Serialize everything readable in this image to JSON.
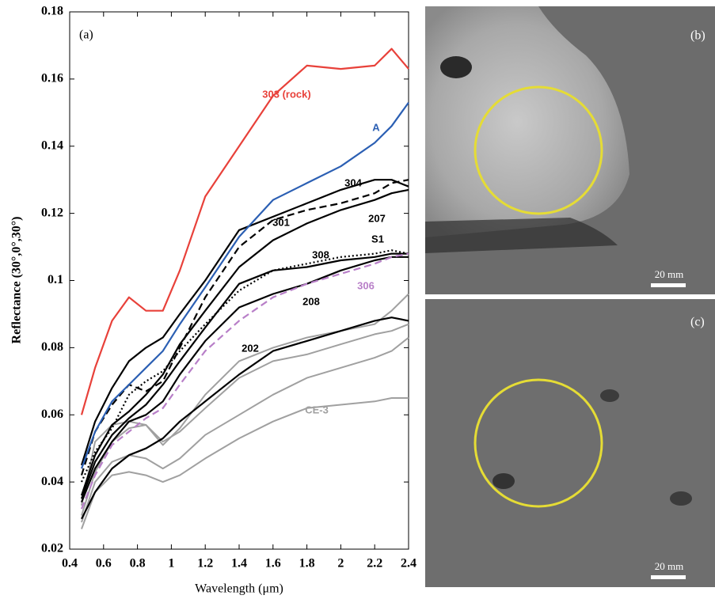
{
  "chart_data": {
    "type": "line",
    "annotation": "(a)",
    "xlabel": "Wavelength (μm)",
    "ylabel": "Reflectance (30°,0°,30°)",
    "xlim": [
      0.4,
      2.4
    ],
    "ylim": [
      0.02,
      0.18
    ],
    "xticks": [
      0.4,
      0.6,
      0.8,
      1,
      1.2,
      1.4,
      1.6,
      1.8,
      2,
      2.2,
      2.4
    ],
    "yticks": [
      0.02,
      0.04,
      0.06,
      0.08,
      0.1,
      0.12,
      0.14,
      0.16,
      0.18
    ],
    "x": [
      0.47,
      0.55,
      0.65,
      0.75,
      0.85,
      0.95,
      1.05,
      1.2,
      1.4,
      1.6,
      1.8,
      2.0,
      2.2,
      2.3,
      2.4
    ],
    "series": [
      {
        "color": "#a0a0a0",
        "values": [
          0.033,
          0.052,
          0.057,
          0.058,
          0.057,
          0.051,
          0.056,
          0.066,
          0.076,
          0.08,
          0.083,
          0.085,
          0.087,
          0.091,
          0.096
        ]
      },
      {
        "color": "#a0a0a0",
        "values": [
          0.03,
          0.043,
          0.052,
          0.056,
          0.057,
          0.052,
          0.055,
          0.062,
          0.071,
          0.076,
          0.078,
          0.081,
          0.084,
          0.085,
          0.087
        ]
      },
      {
        "color": "#a0a0a0",
        "values": [
          0.028,
          0.04,
          0.046,
          0.048,
          0.047,
          0.044,
          0.047,
          0.054,
          0.06,
          0.066,
          0.071,
          0.074,
          0.077,
          0.079,
          0.083
        ]
      },
      {
        "name": "CE-3",
        "color": "#a0a0a0",
        "values": [
          0.026,
          0.037,
          0.042,
          0.043,
          0.042,
          0.04,
          0.042,
          0.047,
          0.053,
          0.058,
          0.062,
          0.063,
          0.064,
          0.065,
          0.065
        ]
      },
      {
        "name": "202",
        "color": "#000000",
        "values": [
          0.029,
          0.037,
          0.044,
          0.048,
          0.05,
          0.053,
          0.058,
          0.064,
          0.072,
          0.079,
          0.082,
          0.085,
          0.088,
          0.089,
          0.088
        ]
      },
      {
        "name": "208",
        "color": "#000000",
        "values": [
          0.034,
          0.044,
          0.052,
          0.058,
          0.06,
          0.064,
          0.072,
          0.082,
          0.092,
          0.096,
          0.099,
          0.103,
          0.106,
          0.107,
          0.107
        ]
      },
      {
        "name": "S1",
        "color": "#000000",
        "values": [
          0.035,
          0.046,
          0.054,
          0.059,
          0.063,
          0.069,
          0.076,
          0.086,
          0.099,
          0.103,
          0.104,
          0.106,
          0.107,
          0.108,
          0.108
        ]
      },
      {
        "name": "308",
        "color": "#000000",
        "dash": "dotted",
        "values": [
          0.04,
          0.049,
          0.056,
          0.066,
          0.07,
          0.073,
          0.079,
          0.087,
          0.097,
          0.103,
          0.105,
          0.107,
          0.108,
          0.109,
          0.108
        ]
      },
      {
        "name": "207",
        "color": "#000000",
        "values": [
          0.036,
          0.048,
          0.057,
          0.061,
          0.066,
          0.072,
          0.081,
          0.091,
          0.104,
          0.112,
          0.117,
          0.121,
          0.124,
          0.126,
          0.127
        ]
      },
      {
        "name": "301",
        "color": "#000000",
        "dash": "dashed",
        "values": [
          0.042,
          0.055,
          0.063,
          0.069,
          0.067,
          0.07,
          0.08,
          0.095,
          0.11,
          0.118,
          0.121,
          0.123,
          0.126,
          0.129,
          0.13
        ]
      },
      {
        "name": "304",
        "color": "#000000",
        "values": [
          0.045,
          0.058,
          0.068,
          0.076,
          0.08,
          0.083,
          0.09,
          0.1,
          0.115,
          0.119,
          0.123,
          0.127,
          0.13,
          0.13,
          0.128
        ]
      },
      {
        "name": "306",
        "color": "#b87fc8",
        "dash": "dashed",
        "values": [
          0.032,
          0.042,
          0.051,
          0.055,
          0.059,
          0.062,
          0.069,
          0.079,
          0.088,
          0.095,
          0.099,
          0.102,
          0.105,
          0.107,
          0.108
        ]
      },
      {
        "name": "A",
        "color": "#2b5fb3",
        "values": [
          0.044,
          0.055,
          0.064,
          0.069,
          0.074,
          0.079,
          0.087,
          0.098,
          0.113,
          0.124,
          0.129,
          0.134,
          0.141,
          0.146,
          0.153
        ]
      },
      {
        "name": "303 (rock)",
        "color": "#e8413a",
        "values": [
          0.06,
          0.074,
          0.088,
          0.095,
          0.091,
          0.091,
          0.103,
          0.125,
          0.14,
          0.155,
          0.164,
          0.163,
          0.164,
          0.169,
          0.163
        ]
      }
    ]
  },
  "images": [
    {
      "label": "(b)",
      "scale": "20 mm"
    },
    {
      "label": "(c)",
      "scale": "20 mm"
    }
  ]
}
